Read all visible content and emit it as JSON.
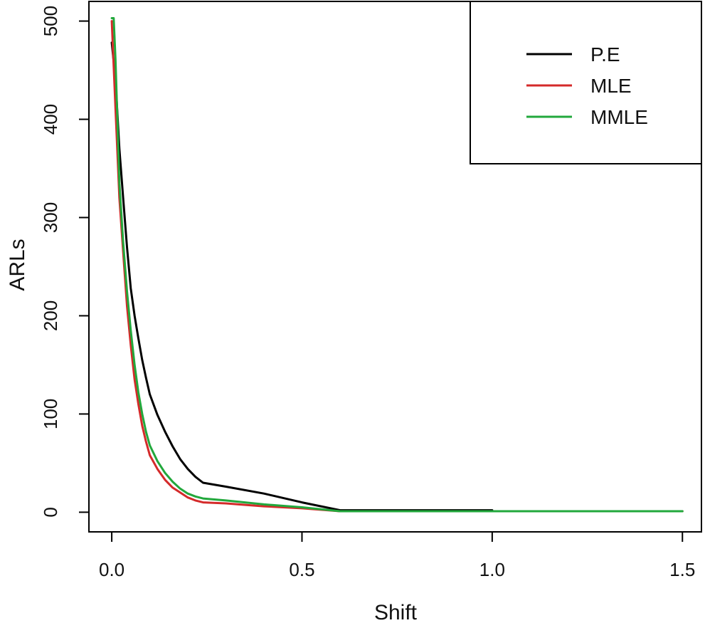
{
  "chart_data": {
    "type": "line",
    "title": "",
    "xlabel": "Shift",
    "ylabel": "ARLs",
    "xlim": [
      -0.06,
      1.55
    ],
    "ylim": [
      -20,
      520
    ],
    "xticks": [
      0.0,
      0.5,
      1.0,
      1.5
    ],
    "xtick_labels": [
      "0.0",
      "0.5",
      "1.0",
      "1.5"
    ],
    "yticks": [
      0,
      100,
      200,
      300,
      400,
      500
    ],
    "ytick_labels": [
      "0",
      "100",
      "200",
      "300",
      "400",
      "500"
    ],
    "grid": false,
    "legend_position": "top-right",
    "series": [
      {
        "name": "P.E",
        "color": "#000000",
        "x": [
          0.0,
          0.01,
          0.02,
          0.03,
          0.04,
          0.05,
          0.06,
          0.07,
          0.08,
          0.09,
          0.1,
          0.12,
          0.14,
          0.16,
          0.18,
          0.2,
          0.22,
          0.24,
          0.3,
          0.4,
          0.5,
          0.6,
          1.0
        ],
        "y": [
          478,
          440,
          370,
          320,
          270,
          228,
          200,
          177,
          155,
          137,
          120,
          99,
          82,
          67,
          54,
          44,
          36,
          30,
          26,
          19,
          10,
          2,
          2
        ]
      },
      {
        "name": "MLE",
        "color": "#d42a2a",
        "x": [
          0.0,
          0.01,
          0.02,
          0.03,
          0.04,
          0.05,
          0.06,
          0.07,
          0.08,
          0.09,
          0.1,
          0.12,
          0.14,
          0.16,
          0.18,
          0.2,
          0.22,
          0.24,
          0.3,
          0.4,
          0.5,
          0.6,
          1.0,
          1.5
        ],
        "y": [
          500,
          410,
          320,
          265,
          210,
          170,
          135,
          110,
          88,
          72,
          58,
          44,
          33,
          25,
          20,
          15,
          12,
          10,
          9,
          6,
          4,
          1,
          1,
          1
        ]
      },
      {
        "name": "MMLE",
        "color": "#22a83c",
        "x": [
          0.0,
          0.005,
          0.01,
          0.02,
          0.03,
          0.04,
          0.05,
          0.06,
          0.07,
          0.08,
          0.09,
          0.1,
          0.12,
          0.14,
          0.16,
          0.18,
          0.2,
          0.22,
          0.24,
          0.3,
          0.4,
          0.5,
          0.6,
          1.0,
          1.5
        ],
        "y": [
          503,
          503,
          460,
          335,
          275,
          225,
          185,
          150,
          122,
          100,
          82,
          68,
          52,
          40,
          31,
          24,
          19,
          16,
          14,
          12,
          8,
          5,
          1,
          1,
          1
        ]
      }
    ]
  }
}
